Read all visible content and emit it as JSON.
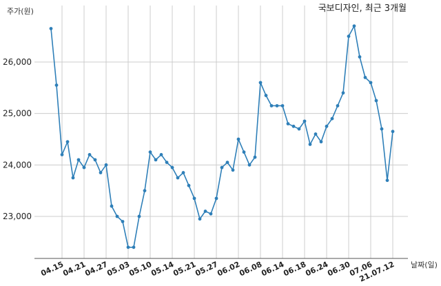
{
  "chart_data": {
    "type": "line",
    "title": "국보디자인, 최근 3개월",
    "ylabel": "주가(원)",
    "xlabel": "날짜(일)",
    "ylim": [
      22200,
      26900
    ],
    "yticks": [
      23000,
      24000,
      25000,
      26000
    ],
    "ytick_labels": [
      "23,000",
      "24,000",
      "25,000",
      "26,000"
    ],
    "grid": true,
    "line_color": "#2e7fb8",
    "xtick_labels": [
      "04.15",
      "04.21",
      "04.27",
      "05.03",
      "05.10",
      "05.14",
      "05.21",
      "05.27",
      "06.02",
      "06.08",
      "06.14",
      "06.18",
      "06.24",
      "06.30",
      "07.06",
      "21.07.12"
    ],
    "xtick_indices": [
      2,
      6,
      10,
      14,
      18,
      22,
      26,
      30,
      34,
      38,
      42,
      46,
      50,
      54,
      58,
      62
    ],
    "series": [
      {
        "values": [
          26650,
          25550,
          24200,
          24450,
          23750,
          24100,
          23950,
          24200,
          24100,
          23850,
          24000,
          23200,
          23000,
          22900,
          22400,
          22400,
          23000,
          23500,
          24250,
          24100,
          24200,
          24050,
          23950,
          23750,
          23850,
          23600,
          23350,
          22950,
          23100,
          23050,
          23350,
          23950,
          24050,
          23900,
          24500,
          24250,
          24000,
          24150,
          25600,
          25350,
          25150,
          25150,
          25150,
          24800,
          24750,
          24700,
          24850,
          24400,
          24600,
          24450,
          24750,
          24900,
          25150,
          25400,
          26500,
          26700,
          26100,
          25700,
          25600,
          25250,
          24700,
          23700,
          24650
        ]
      }
    ]
  }
}
